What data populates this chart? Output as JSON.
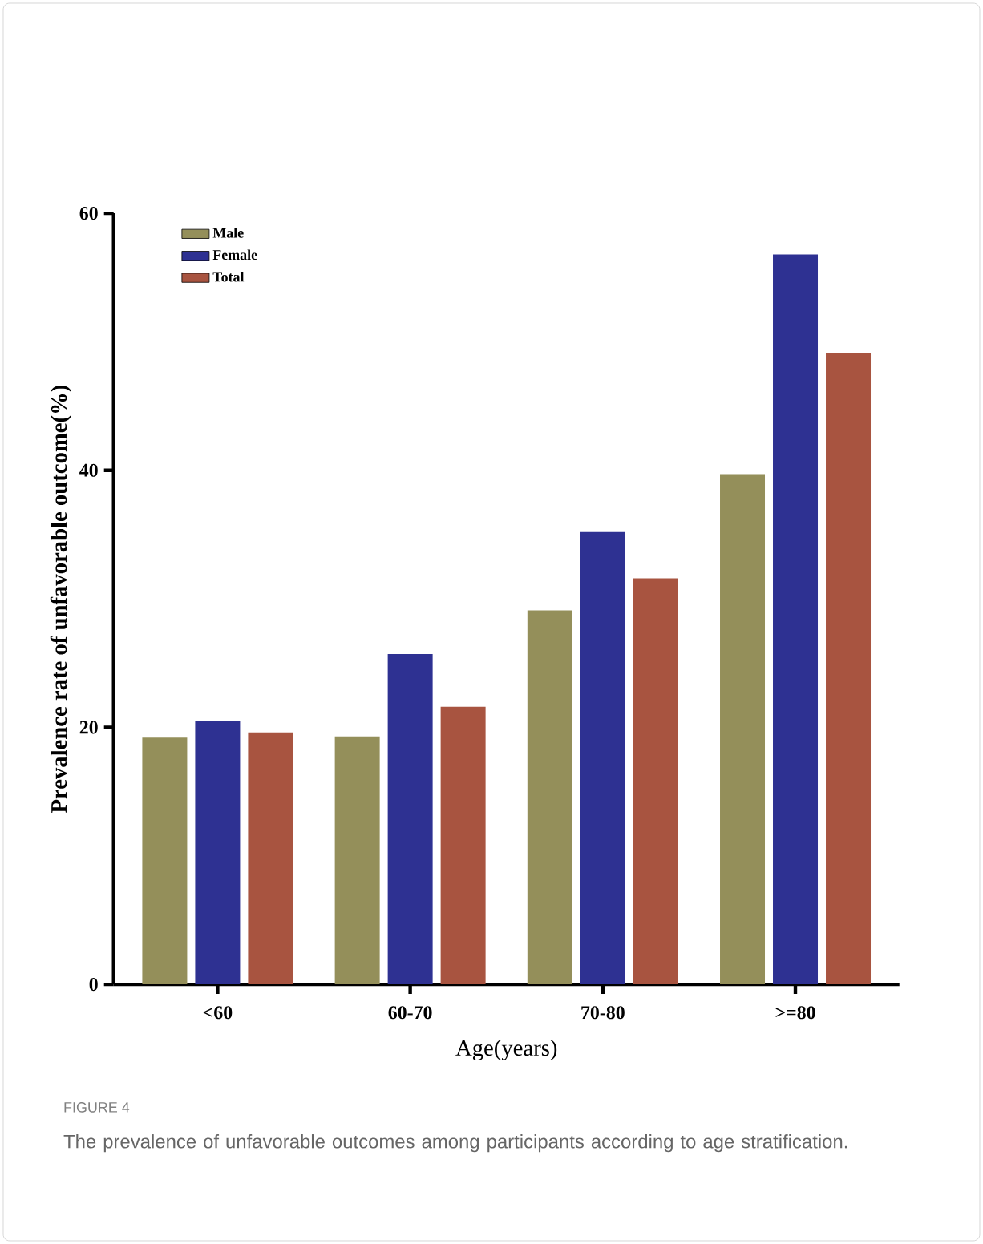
{
  "chart_data": {
    "type": "bar",
    "xlabel": "Age(years)",
    "ylabel": "Prevalence rate of unfavorable outcome(%)",
    "categories": [
      "<60",
      "60-70",
      "70-80",
      ">=80"
    ],
    "series": [
      {
        "name": "Male",
        "color": "#948f5a",
        "values": [
          19.2,
          19.3,
          29.1,
          39.7
        ]
      },
      {
        "name": "Female",
        "color": "#2e3192",
        "values": [
          20.5,
          25.7,
          35.2,
          56.8
        ]
      },
      {
        "name": "Total",
        "color": "#a85440",
        "values": [
          19.6,
          21.6,
          31.6,
          49.1
        ]
      }
    ],
    "ylim": [
      0,
      60
    ],
    "yticks": [
      0,
      20,
      40,
      60
    ],
    "grid": false,
    "legend": "top left",
    "annotations": [
      "FIGURE 4",
      "The prevalence of unfavorable outcomes among participants according to age stratification."
    ]
  }
}
